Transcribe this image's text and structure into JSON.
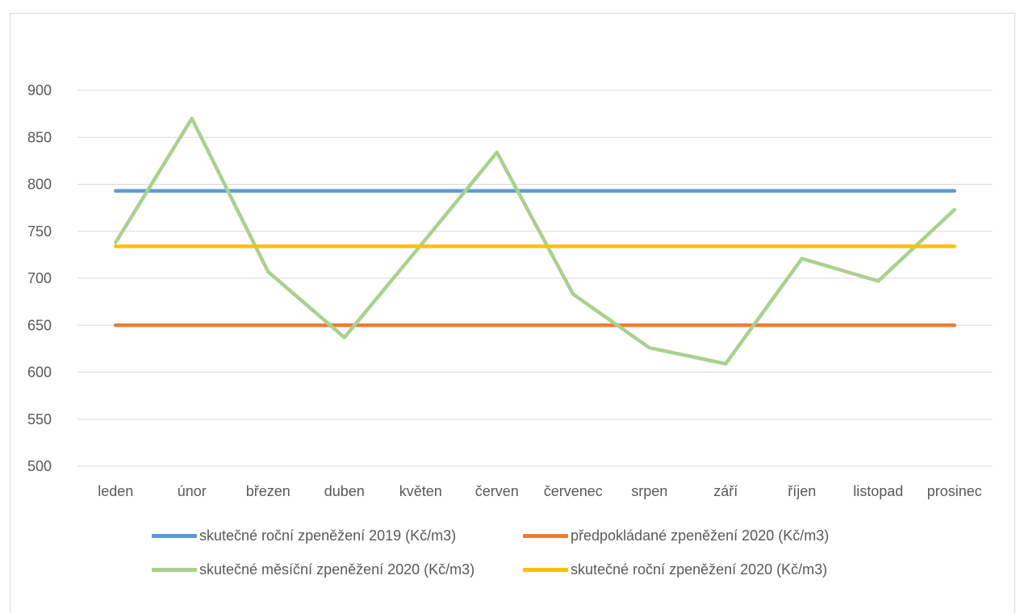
{
  "chart_data": {
    "type": "line",
    "categories": [
      "leden",
      "únor",
      "březen",
      "duben",
      "květen",
      "červen",
      "červenec",
      "srpen",
      "září",
      "říjen",
      "listopad",
      "prosinec"
    ],
    "ylim": [
      500,
      900
    ],
    "yticks": [
      500,
      550,
      600,
      650,
      700,
      750,
      800,
      850,
      900
    ],
    "grid": true,
    "legend_position": "bottom",
    "series": [
      {
        "name": "skutečné roční zpeněžení 2019 (Kč/m3)",
        "color": "#5b9bd5",
        "values": [
          793,
          793,
          793,
          793,
          793,
          793,
          793,
          793,
          793,
          793,
          793,
          793
        ]
      },
      {
        "name": "předpokládané zpeněžení 2020 (Kč/m3)",
        "color": "#ed7d31",
        "values": [
          650,
          650,
          650,
          650,
          650,
          650,
          650,
          650,
          650,
          650,
          650,
          650
        ]
      },
      {
        "name": "skutečné měsíční zpeněžení 2020 (Kč/m3)",
        "color": "#a9d18e",
        "values": [
          738,
          870,
          707,
          637,
          735,
          834,
          683,
          626,
          609,
          721,
          697,
          773
        ]
      },
      {
        "name": "skutečné roční zpeněžení 2020 (Kč/m3)",
        "color": "#ffc000",
        "values": [
          734,
          734,
          734,
          734,
          734,
          734,
          734,
          734,
          734,
          734,
          734,
          734
        ]
      }
    ]
  }
}
